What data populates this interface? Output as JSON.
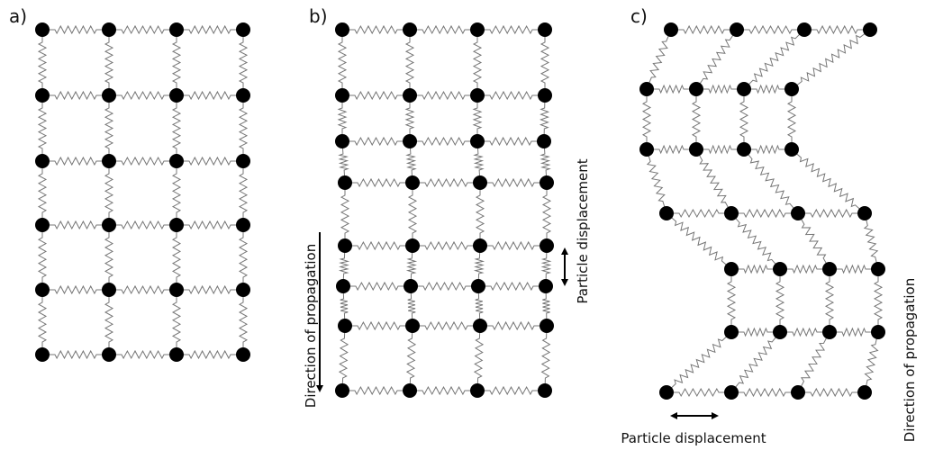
{
  "panels": [
    {
      "label": "a)"
    },
    {
      "label": "b)",
      "propagation": "Direction of propagation",
      "displacement": "Particle displacement"
    },
    {
      "label": "c)",
      "propagation": "Direction of propagation",
      "displacement": "Particle displacement"
    }
  ]
}
